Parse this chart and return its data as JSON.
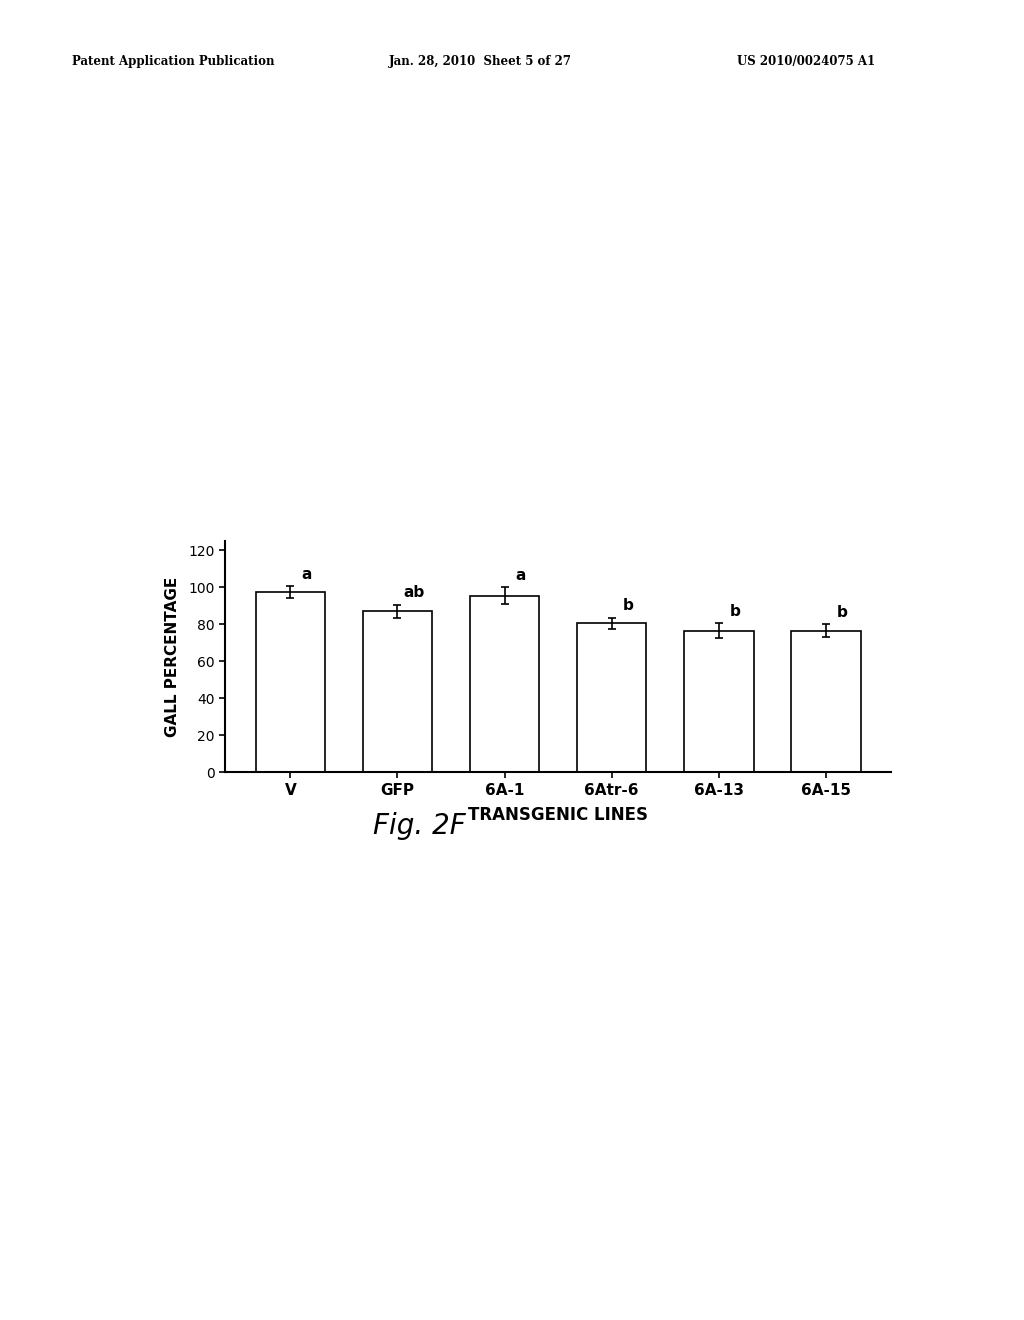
{
  "categories": [
    "V",
    "GFP",
    "6A-1",
    "6Atr-6",
    "6A-13",
    "6A-15"
  ],
  "values": [
    97.5,
    87.0,
    95.5,
    80.5,
    76.5,
    76.5
  ],
  "errors": [
    3.0,
    3.5,
    4.5,
    3.0,
    4.0,
    3.5
  ],
  "significance_labels": [
    "a",
    "ab",
    "a",
    "b",
    "b",
    "b"
  ],
  "ylabel": "GALL PERCENTAGE",
  "xlabel": "TRANSGENIC LINES",
  "ylim": [
    0,
    125
  ],
  "yticks": [
    0,
    20,
    40,
    60,
    80,
    100,
    120
  ],
  "bar_color": "#ffffff",
  "bar_edge_color": "#000000",
  "bar_width": 0.65,
  "header_left": "Patent Application Publication",
  "header_mid": "Jan. 28, 2010  Sheet 5 of 27",
  "header_right": "US 2010/0024075 A1",
  "fig_label": "Fig. 2F",
  "background_color": "#ffffff",
  "text_color": "#000000",
  "sig_label_fontsize": 11,
  "axis_label_fontsize": 11,
  "tick_fontsize": 10,
  "xlabel_fontsize": 12,
  "header_fontsize": 8.5
}
